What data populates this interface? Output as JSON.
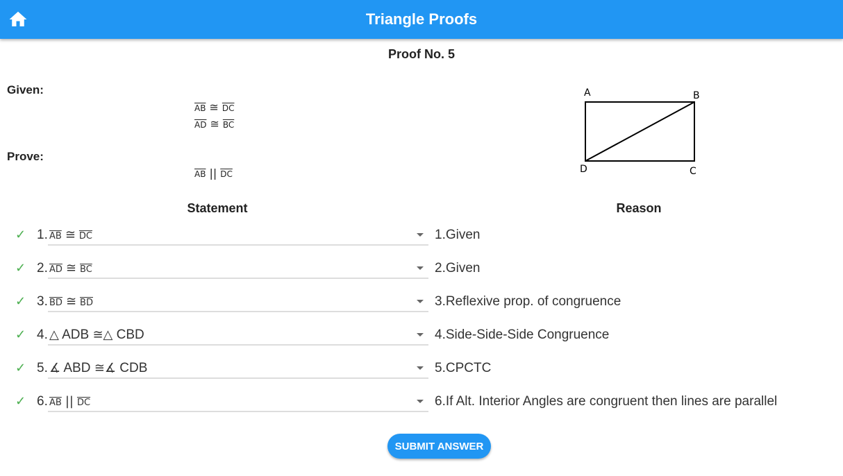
{
  "appbar": {
    "title": "Triangle Proofs",
    "home_icon": "home-icon",
    "color": "#2196F3"
  },
  "proof_title": "Proof No. 5",
  "given": {
    "label": "Given:",
    "items": [
      {
        "left": "AB",
        "op": "≅",
        "right": "DC"
      },
      {
        "left": "AD",
        "op": "≅",
        "right": "BC"
      }
    ]
  },
  "prove": {
    "label": "Prove:",
    "item": {
      "left": "AB",
      "op": "||",
      "right": "DC"
    }
  },
  "diagram": {
    "labels": {
      "a": "A",
      "b": "B",
      "c": "C",
      "d": "D"
    }
  },
  "table": {
    "statement_header": "Statement",
    "reason_header": "Reason",
    "rows": [
      {
        "num": "1.",
        "kind": "segment",
        "left": "AB",
        "op": "≅",
        "right": "DC",
        "reason": "1.Given",
        "status": "correct"
      },
      {
        "num": "2.",
        "kind": "segment",
        "left": "AD",
        "op": "≅",
        "right": "BC",
        "reason": "2.Given",
        "status": "correct"
      },
      {
        "num": "3.",
        "kind": "segment",
        "left": "BD",
        "op": "≅",
        "right": "BD",
        "reason": "3.Reflexive prop. of congruence",
        "status": "correct"
      },
      {
        "num": "4.",
        "kind": "triangle",
        "left": "ADB",
        "op": "≅",
        "right": "CBD",
        "reason": "4.Side-Side-Side Congruence",
        "status": "correct"
      },
      {
        "num": "5.",
        "kind": "angle",
        "left": "ABD",
        "op": "≅",
        "right": "CDB",
        "reason": "5.CPCTC",
        "status": "correct"
      },
      {
        "num": "6.",
        "kind": "segment",
        "left": "AB",
        "op": "||",
        "right": "DC",
        "reason": "6.If Alt. Interior Angles are congruent then lines are parallel",
        "status": "correct"
      }
    ]
  },
  "symbols": {
    "triangle": "△",
    "angle": "∡",
    "check": "✓"
  },
  "check_color": "#4CAF50",
  "submit_label": "SUBMIT ANSWER"
}
